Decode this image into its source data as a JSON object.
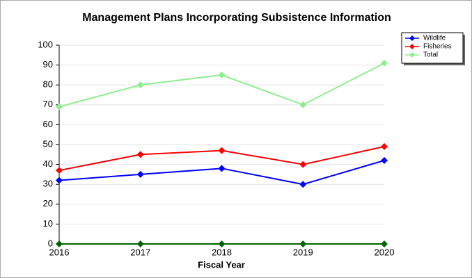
{
  "chart_data": {
    "type": "line",
    "title": "Management Plans Incorporating Subsistence Information",
    "x_label": "Fiscal Year",
    "categories": [
      "2016",
      "2017",
      "2018",
      "2019",
      "2020"
    ],
    "series": [
      {
        "name": "Wildlife",
        "color": "#0000ff",
        "values": [
          32,
          35,
          38,
          30,
          42
        ]
      },
      {
        "name": "Fisheries",
        "color": "#ff0000",
        "values": [
          37,
          45,
          47,
          40,
          49
        ]
      },
      {
        "name": "Total",
        "color": "#90ee90",
        "values": [
          69,
          80,
          85,
          70,
          91
        ]
      }
    ],
    "ylim": [
      0,
      100
    ],
    "yticks": [
      0,
      10,
      20,
      30,
      40,
      50,
      60,
      70,
      80,
      90,
      100
    ],
    "grid": true,
    "legend": "top-right"
  }
}
